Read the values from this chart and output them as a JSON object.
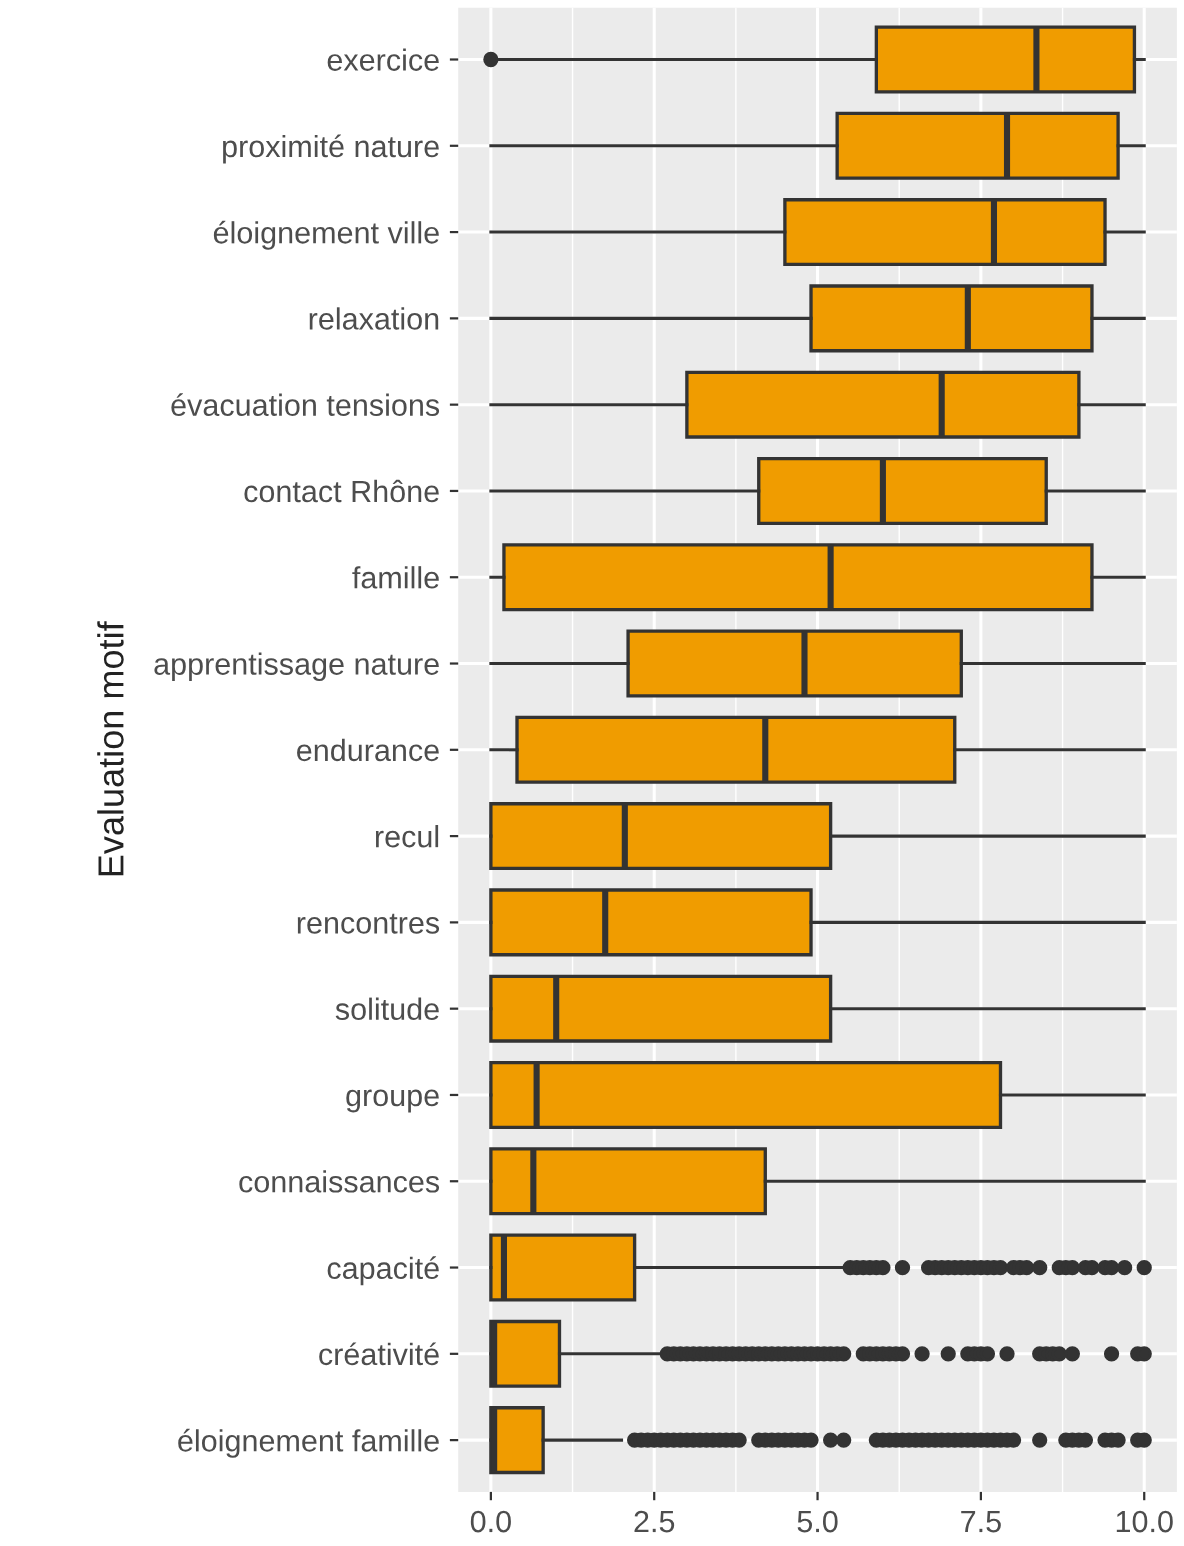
{
  "chart_data": {
    "type": "box",
    "orientation": "horizontal",
    "ylabel": "Evaluation motif",
    "categories": [
      "exercice",
      "proximité nature",
      "éloignement ville",
      "relaxation",
      "évacuation tensions",
      "contact Rhône",
      "famille",
      "apprentissage nature",
      "endurance",
      "recul",
      "rencontres",
      "solitude",
      "groupe",
      "connaissances",
      "capacité",
      "créativité",
      "éloignement famille"
    ],
    "color": "#f09c00",
    "boxes": [
      {
        "low": 0.1,
        "q1": 5.9,
        "median": 8.35,
        "q3": 9.85,
        "high": 10,
        "outliers": [
          0
        ]
      },
      {
        "low": 0,
        "q1": 5.3,
        "median": 7.9,
        "q3": 9.6,
        "high": 10
      },
      {
        "low": 0,
        "q1": 4.5,
        "median": 7.7,
        "q3": 9.4,
        "high": 10
      },
      {
        "low": 0,
        "q1": 4.9,
        "median": 7.3,
        "q3": 9.2,
        "high": 10
      },
      {
        "low": 0,
        "q1": 3.0,
        "median": 6.9,
        "q3": 9.0,
        "high": 10
      },
      {
        "low": 0,
        "q1": 4.1,
        "median": 6.0,
        "q3": 8.5,
        "high": 10
      },
      {
        "low": 0,
        "q1": 0.2,
        "median": 5.2,
        "q3": 9.2,
        "high": 10
      },
      {
        "low": 0,
        "q1": 2.1,
        "median": 4.8,
        "q3": 7.2,
        "high": 10
      },
      {
        "low": 0,
        "q1": 0.4,
        "median": 4.2,
        "q3": 7.1,
        "high": 10
      },
      {
        "low": 0,
        "q1": 0,
        "median": 2.05,
        "q3": 5.2,
        "high": 10
      },
      {
        "low": 0,
        "q1": 0,
        "median": 1.75,
        "q3": 4.9,
        "high": 10
      },
      {
        "low": 0,
        "q1": 0,
        "median": 1.0,
        "q3": 5.2,
        "high": 10
      },
      {
        "low": 0,
        "q1": 0,
        "median": 0.7,
        "q3": 7.8,
        "high": 10
      },
      {
        "low": 0,
        "q1": 0,
        "median": 0.65,
        "q3": 4.2,
        "high": 10
      },
      {
        "low": 0,
        "q1": 0,
        "median": 0.2,
        "q3": 2.2,
        "high": 5.4,
        "outliers": [
          5.5,
          5.6,
          5.7,
          5.8,
          5.9,
          6.0,
          6.3,
          6.7,
          6.8,
          6.9,
          7.0,
          7.1,
          7.2,
          7.3,
          7.4,
          7.5,
          7.6,
          7.7,
          7.8,
          8.0,
          8.1,
          8.2,
          8.4,
          8.7,
          8.8,
          8.9,
          9.1,
          9.2,
          9.4,
          9.5,
          9.7,
          10.0
        ]
      },
      {
        "low": 0,
        "q1": 0,
        "median": 0.05,
        "q3": 1.05,
        "high": 2.6,
        "outliers": [
          2.7,
          2.8,
          2.9,
          3.0,
          3.1,
          3.2,
          3.3,
          3.4,
          3.5,
          3.6,
          3.7,
          3.8,
          3.9,
          4.0,
          4.1,
          4.2,
          4.3,
          4.4,
          4.5,
          4.6,
          4.7,
          4.8,
          4.9,
          5.0,
          5.1,
          5.2,
          5.3,
          5.4,
          5.7,
          5.8,
          5.9,
          6.0,
          6.1,
          6.2,
          6.3,
          6.6,
          7.0,
          7.3,
          7.4,
          7.5,
          7.6,
          7.9,
          8.4,
          8.5,
          8.6,
          8.7,
          8.9,
          9.5,
          9.9,
          10.0
        ]
      },
      {
        "low": 0,
        "q1": 0,
        "median": 0.05,
        "q3": 0.8,
        "high": 2.0,
        "outliers": [
          2.2,
          2.3,
          2.4,
          2.5,
          2.6,
          2.7,
          2.8,
          2.9,
          3.0,
          3.1,
          3.2,
          3.3,
          3.4,
          3.5,
          3.6,
          3.7,
          3.8,
          4.1,
          4.2,
          4.3,
          4.4,
          4.5,
          4.6,
          4.7,
          4.8,
          4.9,
          5.2,
          5.4,
          5.9,
          6.0,
          6.1,
          6.2,
          6.3,
          6.4,
          6.5,
          6.6,
          6.7,
          6.8,
          6.9,
          7.0,
          7.1,
          7.2,
          7.3,
          7.4,
          7.5,
          7.6,
          7.7,
          7.8,
          7.9,
          8.0,
          8.4,
          8.8,
          8.9,
          9.0,
          9.1,
          9.4,
          9.5,
          9.6,
          9.9,
          10.0
        ]
      }
    ],
    "xlim": [
      -0.5,
      10.5
    ],
    "xticks": [
      {
        "value": 0,
        "label": "0.0"
      },
      2.5,
      {
        "value": 5,
        "label": "5.0"
      },
      7.5,
      {
        "value": 10,
        "label": "10.0"
      }
    ],
    "grid": true
  }
}
